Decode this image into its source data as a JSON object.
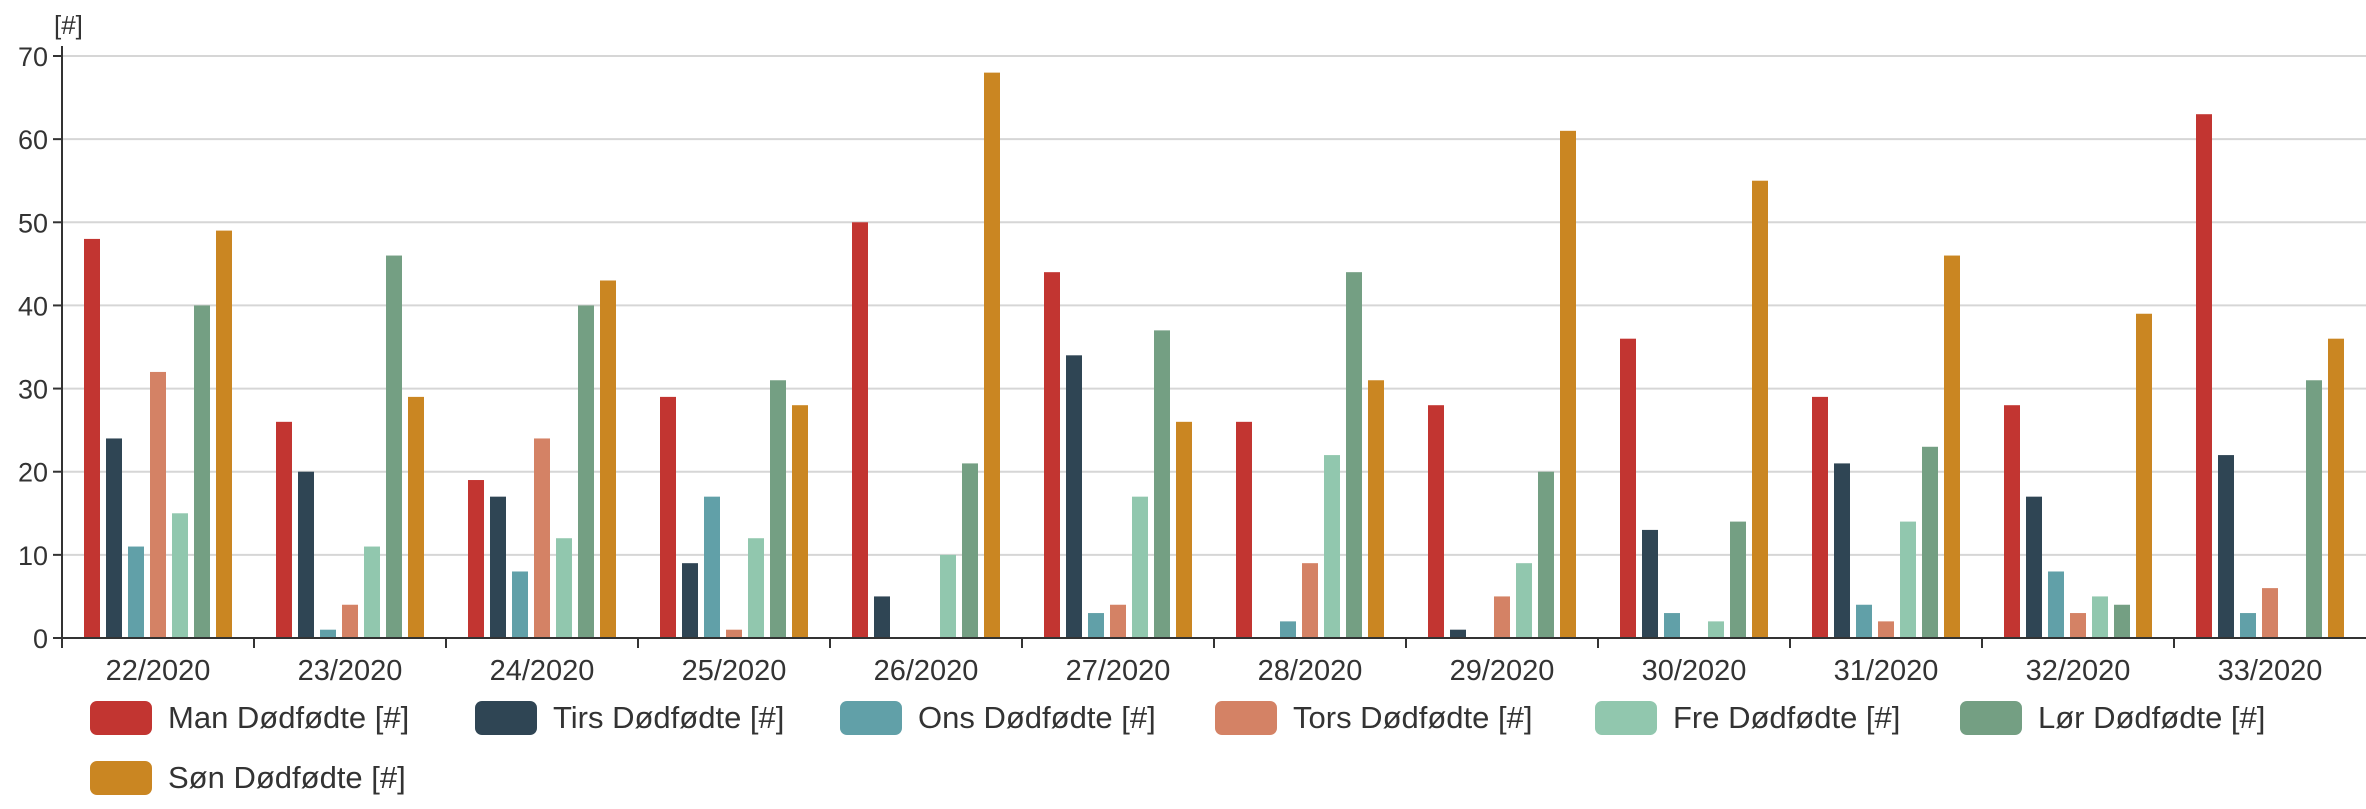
{
  "chart_data": {
    "type": "bar",
    "ylabel": "[#]",
    "ylim": [
      0,
      70
    ],
    "yticks": [
      0,
      10,
      20,
      30,
      40,
      50,
      60,
      70
    ],
    "grid": true,
    "legend_position": "bottom",
    "categories": [
      "22/2020",
      "23/2020",
      "24/2020",
      "25/2020",
      "26/2020",
      "27/2020",
      "28/2020",
      "29/2020",
      "30/2020",
      "31/2020",
      "32/2020",
      "33/2020"
    ],
    "series": [
      {
        "name": "Man Dødfødte [#]",
        "color": "#c23531",
        "values": [
          48,
          26,
          19,
          29,
          50,
          44,
          26,
          28,
          36,
          29,
          28,
          63
        ]
      },
      {
        "name": "Tirs Dødfødte [#]",
        "color": "#2f4554",
        "values": [
          24,
          20,
          17,
          9,
          5,
          34,
          0,
          1,
          13,
          21,
          17,
          22
        ]
      },
      {
        "name": "Ons Dødfødte [#]",
        "color": "#61a0a8",
        "values": [
          11,
          1,
          8,
          17,
          0,
          3,
          2,
          0,
          3,
          4,
          8,
          3
        ]
      },
      {
        "name": "Tors Dødfødte [#]",
        "color": "#d48265",
        "values": [
          32,
          4,
          24,
          1,
          0,
          4,
          9,
          5,
          0,
          2,
          3,
          6
        ]
      },
      {
        "name": "Fre Dødfødte [#]",
        "color": "#91c7ae",
        "values": [
          15,
          11,
          12,
          12,
          10,
          17,
          22,
          9,
          2,
          14,
          5,
          0
        ]
      },
      {
        "name": "Lør Dødfødte [#]",
        "color": "#749f83",
        "values": [
          40,
          46,
          40,
          31,
          21,
          37,
          44,
          20,
          14,
          23,
          4,
          31
        ]
      },
      {
        "name": "Søn Dødfødte [#]",
        "color": "#ca8622",
        "values": [
          49,
          29,
          43,
          28,
          68,
          26,
          31,
          61,
          55,
          46,
          39,
          36
        ]
      }
    ]
  }
}
